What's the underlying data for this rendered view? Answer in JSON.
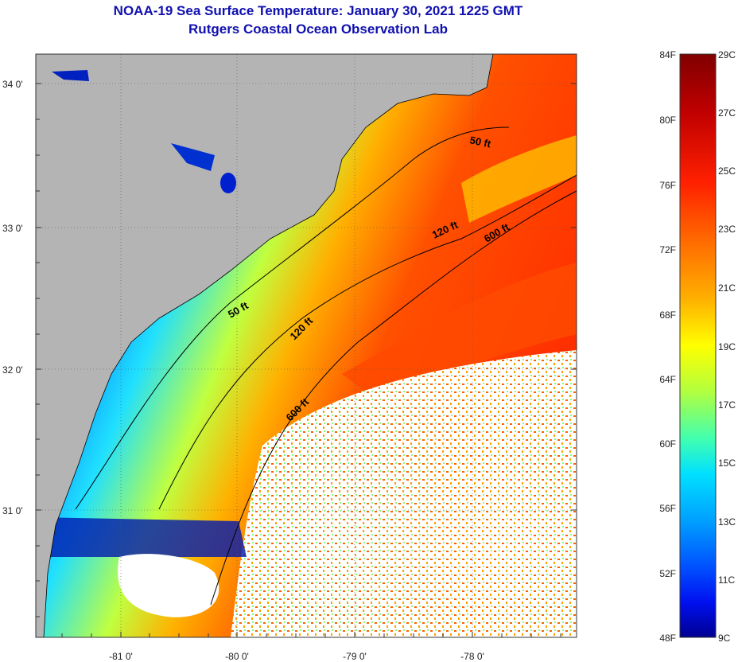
{
  "title": {
    "line1": "NOAA-19 Sea Surface Temperature:  January 30, 2021 1225 GMT",
    "line2": "Rutgers Coastal Ocean Observation Lab"
  },
  "map": {
    "lat_labels": [
      "34 0'",
      "33 0'",
      "32 0'",
      "31 0'"
    ],
    "lon_labels": [
      "-81 0'",
      "-80 0'",
      "-79 0'",
      "-78 0'"
    ],
    "contours": [
      {
        "depth": "50 ft"
      },
      {
        "depth": "120 ft"
      },
      {
        "depth": "600 ft"
      }
    ],
    "contour_label_instances": [
      "50 ft",
      "120 ft",
      "600 ft",
      "50 ft",
      "120 ft",
      "600 ft"
    ],
    "colors": {
      "land": "#b4b4b4",
      "cloud": "#ffffff",
      "coastline": "#000000"
    }
  },
  "colorbar": {
    "fahrenheit_labels": [
      "84F",
      "80F",
      "76F",
      "72F",
      "68F",
      "64F",
      "60F",
      "56F",
      "52F",
      "48F"
    ],
    "celsius_labels": [
      "29C",
      "27C",
      "25C",
      "23C",
      "21C",
      "19C",
      "17C",
      "15C",
      "13C",
      "11C",
      "9C"
    ],
    "gradient_colors": [
      "#800000",
      "#c00000",
      "#ff2000",
      "#ff6a00",
      "#ffa000",
      "#ffd000",
      "#ffff00",
      "#b0ff40",
      "#40ffb0",
      "#00e0ff",
      "#00a0ff",
      "#0050ff",
      "#0010f0",
      "#000090"
    ]
  }
}
